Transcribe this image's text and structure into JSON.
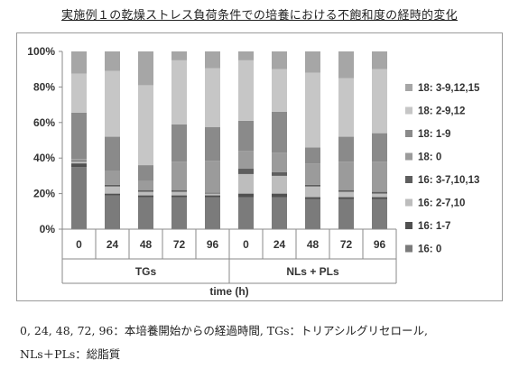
{
  "title": "実施例１の乾燥ストレス負荷条件での培養における不飽和度の経時的変化",
  "chart_data": {
    "type": "bar",
    "stacked": true,
    "percent": true,
    "categories": [
      "0",
      "24",
      "48",
      "72",
      "96",
      "0",
      "24",
      "48",
      "72",
      "96"
    ],
    "groups": [
      {
        "label": "TGs",
        "count": 5
      },
      {
        "label": "NLs + PLs",
        "count": 5
      }
    ],
    "xlabel": "time (h)",
    "ylabel": "",
    "ylim": [
      0,
      100
    ],
    "yticks": [
      "0%",
      "20%",
      "40%",
      "60%",
      "80%",
      "100%"
    ],
    "grid": false,
    "legend_position": "right",
    "series": [
      {
        "name": "16: 0",
        "color": "#7b7b7b",
        "values": [
          35,
          19,
          18,
          18,
          18,
          18,
          18,
          17,
          17,
          17
        ]
      },
      {
        "name": "16: 1-7",
        "color": "#505050",
        "values": [
          2,
          1,
          1,
          1,
          1,
          2,
          2,
          1,
          1,
          1
        ]
      },
      {
        "name": "16: 2-7,10",
        "color": "#bdbdbd",
        "values": [
          1,
          4,
          2,
          2,
          1,
          11,
          10,
          6,
          3,
          2
        ]
      },
      {
        "name": "16: 3-7,10,13",
        "color": "#5e5e5e",
        "values": [
          0.5,
          1,
          1,
          1,
          0.5,
          3,
          2,
          1,
          1,
          1
        ]
      },
      {
        "name": "18: 0",
        "color": "#9b9b9b",
        "values": [
          1,
          8,
          5,
          16,
          18,
          10,
          11,
          12,
          16,
          17
        ]
      },
      {
        "name": "18: 1-9",
        "color": "#8a8a8a",
        "values": [
          26,
          19,
          9,
          21,
          19,
          17,
          23,
          9,
          14,
          16
        ]
      },
      {
        "name": "18: 2-9,12",
        "color": "#c6c6c6",
        "values": [
          22,
          37,
          45,
          36,
          33,
          34,
          24,
          42,
          33,
          36
        ]
      },
      {
        "name": "18: 3-9,12,15",
        "color": "#a6a6a6",
        "values": [
          12.5,
          11,
          19,
          5,
          9.5,
          5,
          10,
          12,
          15,
          10
        ]
      }
    ]
  },
  "caption": {
    "line1": "0, 24, 48, 72, 96：本培養開始からの経過時間, TGs：トリアシルグリセロール,",
    "line2": "NLs＋PLs：総脂質"
  }
}
